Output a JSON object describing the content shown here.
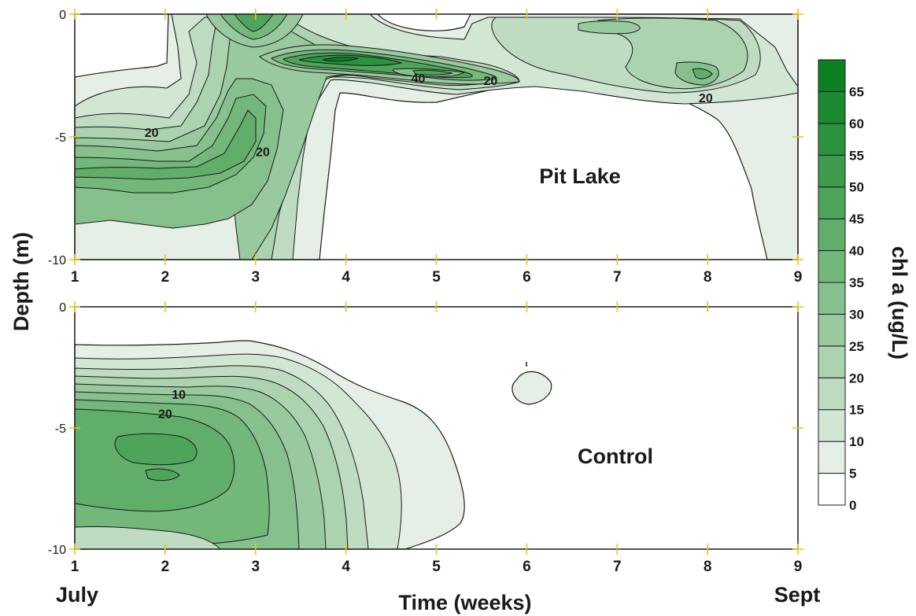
{
  "chart_data": [
    {
      "type": "contour",
      "panel_label": "Pit Lake",
      "x_ticks": [
        "1",
        "2",
        "3",
        "4",
        "5",
        "6",
        "7",
        "8",
        "9"
      ],
      "y_ticks": [
        "0",
        "-5",
        "-10"
      ],
      "xlim": [
        1,
        9
      ],
      "ylim": [
        -10,
        0
      ],
      "contour_labels": [
        {
          "text": "20",
          "x": 1.85,
          "y": -4.8
        },
        {
          "text": "20",
          "x": 3.08,
          "y": -5.6
        },
        {
          "text": "40",
          "x": 4.8,
          "y": -2.6
        },
        {
          "text": "20",
          "x": 5.6,
          "y": -2.7
        },
        {
          "text": "20",
          "x": 7.98,
          "y": -3.4
        }
      ],
      "features": [
        {
          "description": "surface bloom peak",
          "week": 3,
          "depth": -0.5,
          "level": 40
        },
        {
          "description": "subsurface maximum",
          "week": 4,
          "depth": -1.8,
          "level": 65
        },
        {
          "description": "secondary maximum",
          "week": 8,
          "depth": -2.8,
          "level": 35
        }
      ]
    },
    {
      "type": "contour",
      "panel_label": "Control",
      "x_ticks": [
        "1",
        "2",
        "3",
        "4",
        "5",
        "6",
        "7",
        "8",
        "9"
      ],
      "y_ticks": [
        "0",
        "-5",
        "-10"
      ],
      "xlim": [
        1,
        9
      ],
      "ylim": [
        -10,
        0
      ],
      "contour_labels": [
        {
          "text": "10",
          "x": 2.15,
          "y": -3.6
        },
        {
          "text": "20",
          "x": 2.0,
          "y": -4.4
        }
      ],
      "features": [
        {
          "description": "deep maximum",
          "week": 2,
          "depth": -5.9,
          "level": 45
        }
      ]
    }
  ],
  "axes": {
    "ylabel": "Depth (m)",
    "xlabel": "Time (weeks)",
    "start_month": "July",
    "end_month": "Sept"
  },
  "colorbar": {
    "title": "chl a (ug/L)",
    "levels": [
      "0",
      "5",
      "10",
      "15",
      "20",
      "25",
      "30",
      "35",
      "40",
      "45",
      "50",
      "55",
      "60",
      "65"
    ],
    "colors": [
      "#ffffff",
      "#e6efe6",
      "#d2e6d4",
      "#bfdcc2",
      "#acd3b0",
      "#99c99e",
      "#86c08d",
      "#73b77b",
      "#60ae6a",
      "#4ea55a",
      "#3c9c4b",
      "#2b933d",
      "#1b8a30",
      "#0c8124"
    ]
  }
}
